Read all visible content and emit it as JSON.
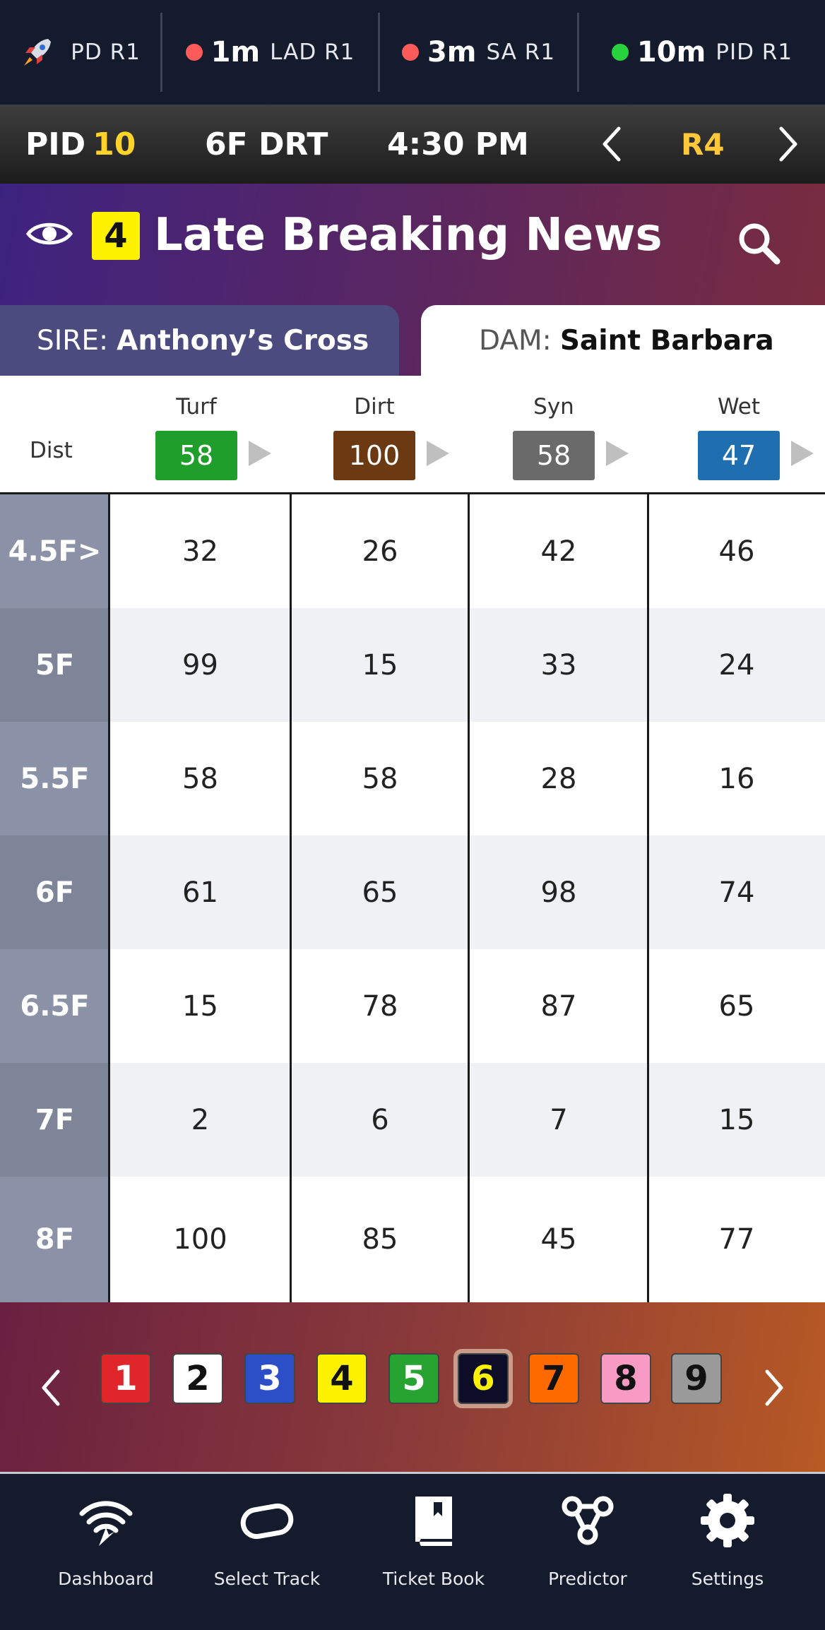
{
  "status_bar": {
    "items": [
      {
        "icon": "rocket-icon",
        "time": "",
        "label": "PD R1"
      },
      {
        "dot_color": "#ff5b5b",
        "time": "1m",
        "label": "LAD R1"
      },
      {
        "dot_color": "#ff5b5b",
        "time": "3m",
        "label": "SA R1"
      },
      {
        "dot_color": "#27d23d",
        "time": "10m",
        "label": "PID R1"
      }
    ]
  },
  "race_bar": {
    "track": "PID",
    "race_number": "10",
    "distance_surface": "6F DRT",
    "post_time": "4:30 PM",
    "race_label": "R4"
  },
  "horse": {
    "program_number": "4",
    "name": "Late Breaking News",
    "sire_label": "SIRE:",
    "sire_name": "Anthony’s Cross",
    "dam_label": "DAM:",
    "dam_name": "Saint Barbara"
  },
  "surfaces": {
    "dist_label": "Dist",
    "columns": [
      {
        "name": "Turf",
        "value": "58",
        "color": "#1f9e2b"
      },
      {
        "name": "Dirt",
        "value": "100",
        "color": "#6b3a12"
      },
      {
        "name": "Syn",
        "value": "58",
        "color": "#6a6a6a"
      },
      {
        "name": "Wet",
        "value": "47",
        "color": "#1f6fb0"
      }
    ]
  },
  "table": {
    "rows": [
      {
        "dist": "4.5F>",
        "turf": "32",
        "dirt": "26",
        "syn": "42",
        "wet": "46"
      },
      {
        "dist": "5F",
        "turf": "99",
        "dirt": "15",
        "syn": "33",
        "wet": "24"
      },
      {
        "dist": "5.5F",
        "turf": "58",
        "dirt": "58",
        "syn": "28",
        "wet": "16"
      },
      {
        "dist": "6F",
        "turf": "61",
        "dirt": "65",
        "syn": "98",
        "wet": "74"
      },
      {
        "dist": "6.5F",
        "turf": "15",
        "dirt": "78",
        "syn": "87",
        "wet": "65"
      },
      {
        "dist": "7F",
        "turf": "2",
        "dirt": "6",
        "syn": "7",
        "wet": "15"
      },
      {
        "dist": "8F",
        "turf": "100",
        "dirt": "85",
        "syn": "45",
        "wet": "77"
      }
    ]
  },
  "program_selector": {
    "selected": "6",
    "numbers": [
      {
        "num": "1",
        "bg": "#e0262b",
        "fg": "#ffffff"
      },
      {
        "num": "2",
        "bg": "#ffffff",
        "fg": "#111111"
      },
      {
        "num": "3",
        "bg": "#2c4fc7",
        "fg": "#ffffff"
      },
      {
        "num": "4",
        "bg": "#fff200",
        "fg": "#111111"
      },
      {
        "num": "5",
        "bg": "#26a331",
        "fg": "#ffffff"
      },
      {
        "num": "6",
        "bg": "#0d0d28",
        "fg": "#fff200"
      },
      {
        "num": "7",
        "bg": "#ff6a00",
        "fg": "#111111"
      },
      {
        "num": "8",
        "bg": "#f79ac4",
        "fg": "#111111"
      },
      {
        "num": "9",
        "bg": "#9a9a9a",
        "fg": "#111111"
      }
    ]
  },
  "bottom_nav": {
    "items": [
      {
        "icon": "wifi-icon",
        "label": "Dashboard"
      },
      {
        "icon": "track-oval-icon",
        "label": "Select Track"
      },
      {
        "icon": "book-icon",
        "label": "Ticket Book"
      },
      {
        "icon": "predictor-icon",
        "label": "Predictor"
      },
      {
        "icon": "gear-icon",
        "label": "Settings"
      }
    ]
  }
}
